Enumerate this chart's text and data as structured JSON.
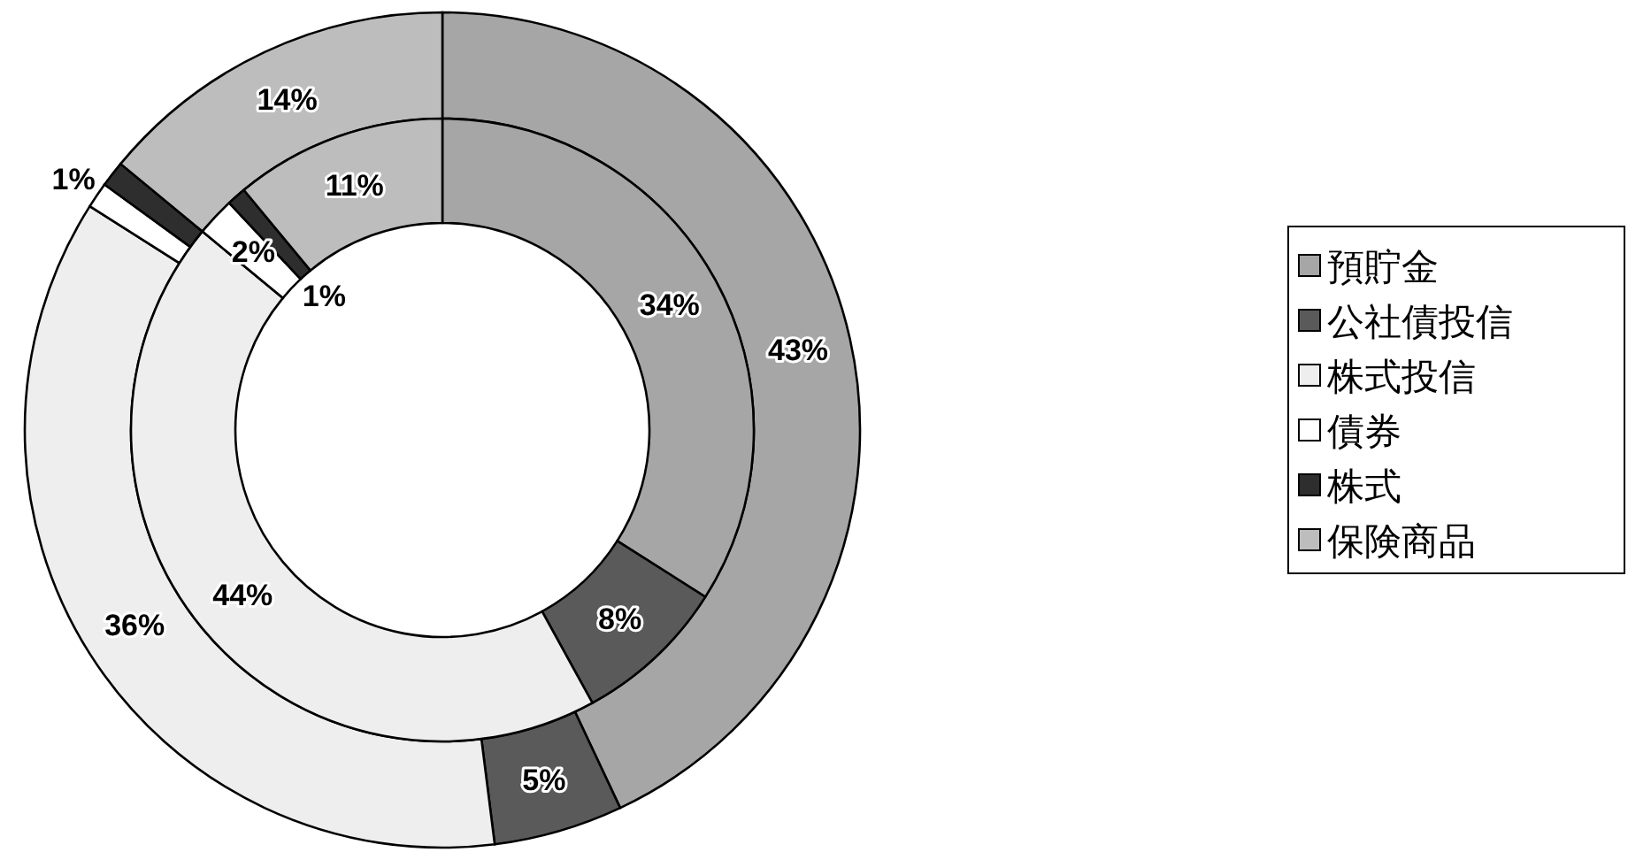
{
  "chart_data": {
    "type": "donut",
    "categories": [
      "預貯金",
      "公社債投信",
      "株式投信",
      "債券",
      "株式",
      "保険商品"
    ],
    "colors": [
      "#a6a6a6",
      "#5a5a5a",
      "#eeeeee",
      "#ffffff",
      "#2e2e2e",
      "#bdbdbd"
    ],
    "series": [
      {
        "values": [
          43,
          5,
          36,
          1,
          1,
          14
        ],
        "value_labels": [
          "43%",
          "5%",
          "36%",
          "1%",
          null,
          "14%"
        ]
      },
      {
        "values": [
          34,
          8,
          44,
          2,
          1,
          11
        ],
        "value_labels": [
          "34%",
          "8%",
          "44%",
          "2%",
          "1%",
          "11%"
        ]
      }
    ],
    "legend": "right"
  }
}
